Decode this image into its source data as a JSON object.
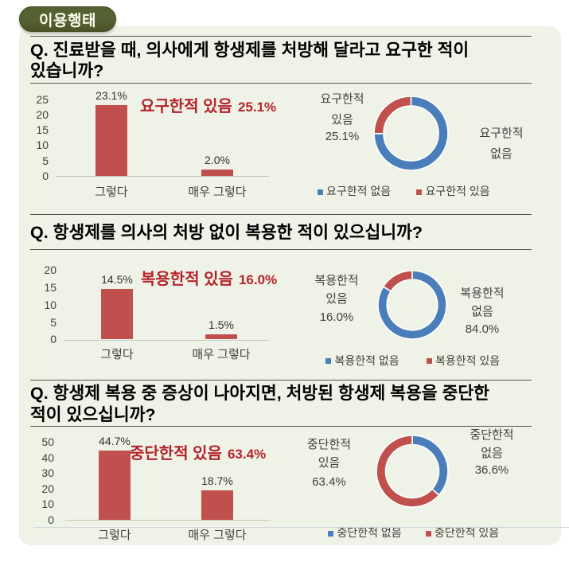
{
  "badge": {
    "label": "이용행태"
  },
  "colors": {
    "page_bg": "#ffffff",
    "panel_bg": "#eff3e7",
    "badge_bg": "#566131",
    "badge_bg_dark": "#4a5427",
    "badge_border": "#404a20",
    "badge_text": "#fcfcee",
    "bar": "#c0504d",
    "donut_no": "#4a7ebb",
    "donut_yes": "#c0504d",
    "annotation": "#b4232a",
    "question_text": "#000000",
    "text_gray": "#3f3f3f",
    "value_label": "#303030",
    "separator": "#55534b",
    "axis_line": "#c6c4bc",
    "footer_line": "#cfd7de"
  },
  "sections": [
    {
      "question_lines": [
        "Q. 진료받을 때, 의사에게 항생제를 처방해 달라고 요구한 적이",
        "있습니까?"
      ],
      "annotation": {
        "label": "요구한적 있음",
        "value": "25.1%"
      },
      "bar_chart_index": 0,
      "donut_chart_index": 1
    },
    {
      "question_lines": [
        "Q. 항생제를 의사의 처방 없이 복용한 적이 있으십니까?"
      ],
      "annotation": {
        "label": "복용한적 있음",
        "value": "16.0%"
      },
      "bar_chart_index": 2,
      "donut_chart_index": 3
    },
    {
      "question_lines": [
        "Q. 항생제 복용 중 증상이 나아지면, 처방된 항생제 복용을 중단한",
        "적이 있으십니까?"
      ],
      "annotation": {
        "label": "중단한적 있음",
        "value": "63.4%"
      },
      "bar_chart_index": 4,
      "donut_chart_index": 5
    }
  ],
  "chart_data": [
    {
      "type": "bar",
      "categories": [
        "그렇다",
        "매우 그렇다"
      ],
      "values": [
        23.1,
        2.0
      ],
      "value_labels": [
        "23.1%",
        "2.0%"
      ],
      "ylim": [
        0,
        25
      ],
      "yticks": [
        0,
        5,
        10,
        15,
        20,
        25
      ],
      "bar_color": "#c0504d",
      "grid": false
    },
    {
      "type": "donut",
      "series": [
        {
          "name": "요구한적 없음",
          "value": 74.9,
          "color": "#4a7ebb"
        },
        {
          "name": "요구한적 있음",
          "value": 25.1,
          "color": "#c0504d"
        }
      ],
      "left_label_lines": [
        "요구한적",
        "있음",
        "25.1%"
      ],
      "right_label_lines": [
        "요구한적",
        "없음"
      ],
      "legend": [
        "요구한적 없음",
        "요구한적 있음"
      ],
      "legend_position": "bottom"
    },
    {
      "type": "bar",
      "categories": [
        "그렇다",
        "매우 그렇다"
      ],
      "values": [
        14.5,
        1.5
      ],
      "value_labels": [
        "14.5%",
        "1.5%"
      ],
      "ylim": [
        0,
        20
      ],
      "yticks": [
        0,
        5,
        10,
        15,
        20
      ],
      "bar_color": "#c0504d",
      "grid": false
    },
    {
      "type": "donut",
      "series": [
        {
          "name": "복용한적 없음",
          "value": 84.0,
          "color": "#4a7ebb"
        },
        {
          "name": "복용한적 있음",
          "value": 16.0,
          "color": "#c0504d"
        }
      ],
      "left_label_lines": [
        "복용한적",
        "있음",
        "16.0%"
      ],
      "right_label_lines": [
        "복용한적",
        "없음",
        "84.0%"
      ],
      "legend": [
        "복용한적 없음",
        "복용한적 있음"
      ],
      "legend_position": "bottom"
    },
    {
      "type": "bar",
      "categories": [
        "그렇다",
        "매우 그렇다"
      ],
      "values": [
        44.7,
        18.7
      ],
      "value_labels": [
        "44.7%",
        "18.7%"
      ],
      "ylim": [
        0,
        50
      ],
      "yticks": [
        0,
        10,
        20,
        30,
        40,
        50
      ],
      "bar_color": "#c0504d",
      "grid": false
    },
    {
      "type": "donut",
      "series": [
        {
          "name": "중단한적 없음",
          "value": 36.6,
          "color": "#4a7ebb"
        },
        {
          "name": "중단한적 있음",
          "value": 63.4,
          "color": "#c0504d"
        }
      ],
      "left_label_lines": [
        "중단한적",
        "있음",
        "63.4%"
      ],
      "right_label_lines": [
        "중단한적",
        "없음",
        "36.6%"
      ],
      "legend": [
        "중단한적 없음",
        "중단한적 있음"
      ],
      "legend_position": "bottom"
    }
  ]
}
